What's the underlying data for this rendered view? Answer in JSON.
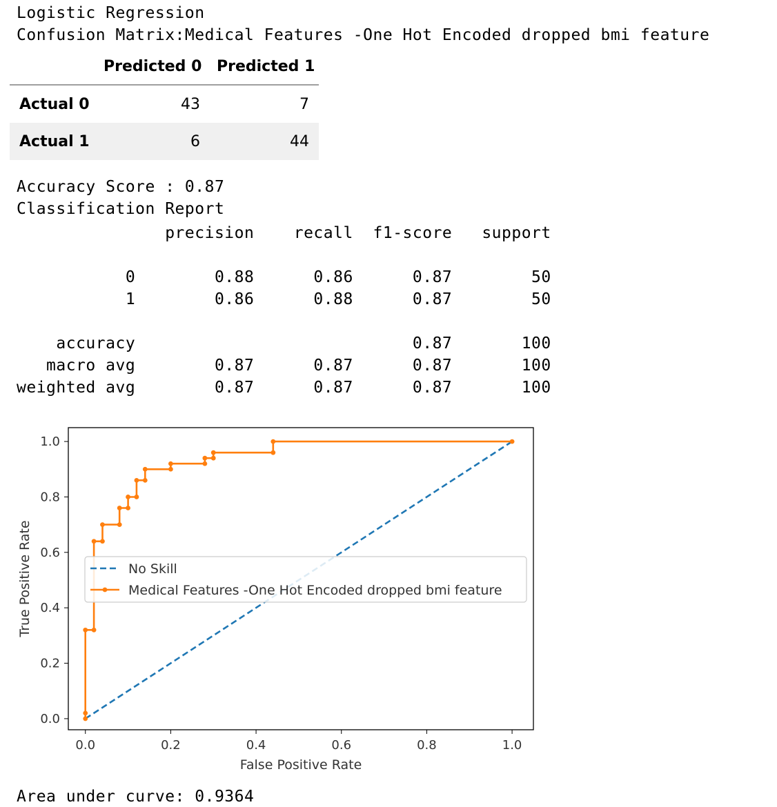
{
  "header": {
    "model_name": "Logistic Regression",
    "confusion_title": "Confusion Matrix:Medical Features -One Hot Encoded dropped bmi feature"
  },
  "confusion_matrix": {
    "columns": [
      "Predicted 0",
      "Predicted 1"
    ],
    "rows": [
      {
        "label": "Actual 0",
        "values": [
          "43",
          "7"
        ]
      },
      {
        "label": "Actual 1",
        "values": [
          "6",
          "44"
        ]
      }
    ]
  },
  "accuracy_line": "Accuracy Score : 0.87",
  "classification_report": {
    "title": "Classification Report",
    "header": [
      "precision",
      "recall",
      "f1-score",
      "support"
    ],
    "rows": [
      {
        "label": "0",
        "precision": "0.88",
        "recall": "0.86",
        "f1": "0.87",
        "support": "50"
      },
      {
        "label": "1",
        "precision": "0.86",
        "recall": "0.88",
        "f1": "0.87",
        "support": "50"
      },
      {
        "label": "accuracy",
        "precision": "",
        "recall": "",
        "f1": "0.87",
        "support": "100"
      },
      {
        "label": "macro avg",
        "precision": "0.87",
        "recall": "0.87",
        "f1": "0.87",
        "support": "100"
      },
      {
        "label": "weighted avg",
        "precision": "0.87",
        "recall": "0.87",
        "f1": "0.87",
        "support": "100"
      }
    ]
  },
  "chart_data": {
    "type": "line",
    "title": "",
    "xlabel": "False Positive Rate",
    "ylabel": "True Positive Rate",
    "xlim": [
      -0.04,
      1.05
    ],
    "ylim": [
      -0.04,
      1.05
    ],
    "xticks": [
      "0.0",
      "0.2",
      "0.4",
      "0.6",
      "0.8",
      "1.0"
    ],
    "yticks": [
      "0.0",
      "0.2",
      "0.4",
      "0.6",
      "0.8",
      "1.0"
    ],
    "legend_position": "center-left",
    "series": [
      {
        "name": "No Skill",
        "color": "#1f77b4",
        "style": "dashed",
        "markers": false,
        "points": [
          [
            0,
            0
          ],
          [
            1,
            1
          ]
        ]
      },
      {
        "name": "Medical Features -One Hot Encoded dropped bmi feature",
        "color": "#ff7f0e",
        "style": "solid",
        "markers": true,
        "points": [
          [
            0,
            0
          ],
          [
            0,
            0.02
          ],
          [
            0,
            0.32
          ],
          [
            0.02,
            0.32
          ],
          [
            0.02,
            0.64
          ],
          [
            0.04,
            0.64
          ],
          [
            0.04,
            0.7
          ],
          [
            0.08,
            0.7
          ],
          [
            0.08,
            0.76
          ],
          [
            0.1,
            0.76
          ],
          [
            0.1,
            0.8
          ],
          [
            0.12,
            0.8
          ],
          [
            0.12,
            0.86
          ],
          [
            0.14,
            0.86
          ],
          [
            0.14,
            0.9
          ],
          [
            0.2,
            0.9
          ],
          [
            0.2,
            0.92
          ],
          [
            0.28,
            0.92
          ],
          [
            0.28,
            0.94
          ],
          [
            0.3,
            0.94
          ],
          [
            0.3,
            0.96
          ],
          [
            0.44,
            0.96
          ],
          [
            0.44,
            1.0
          ],
          [
            1.0,
            1.0
          ]
        ]
      }
    ]
  },
  "auc_line": "Area under curve: 0.9364"
}
